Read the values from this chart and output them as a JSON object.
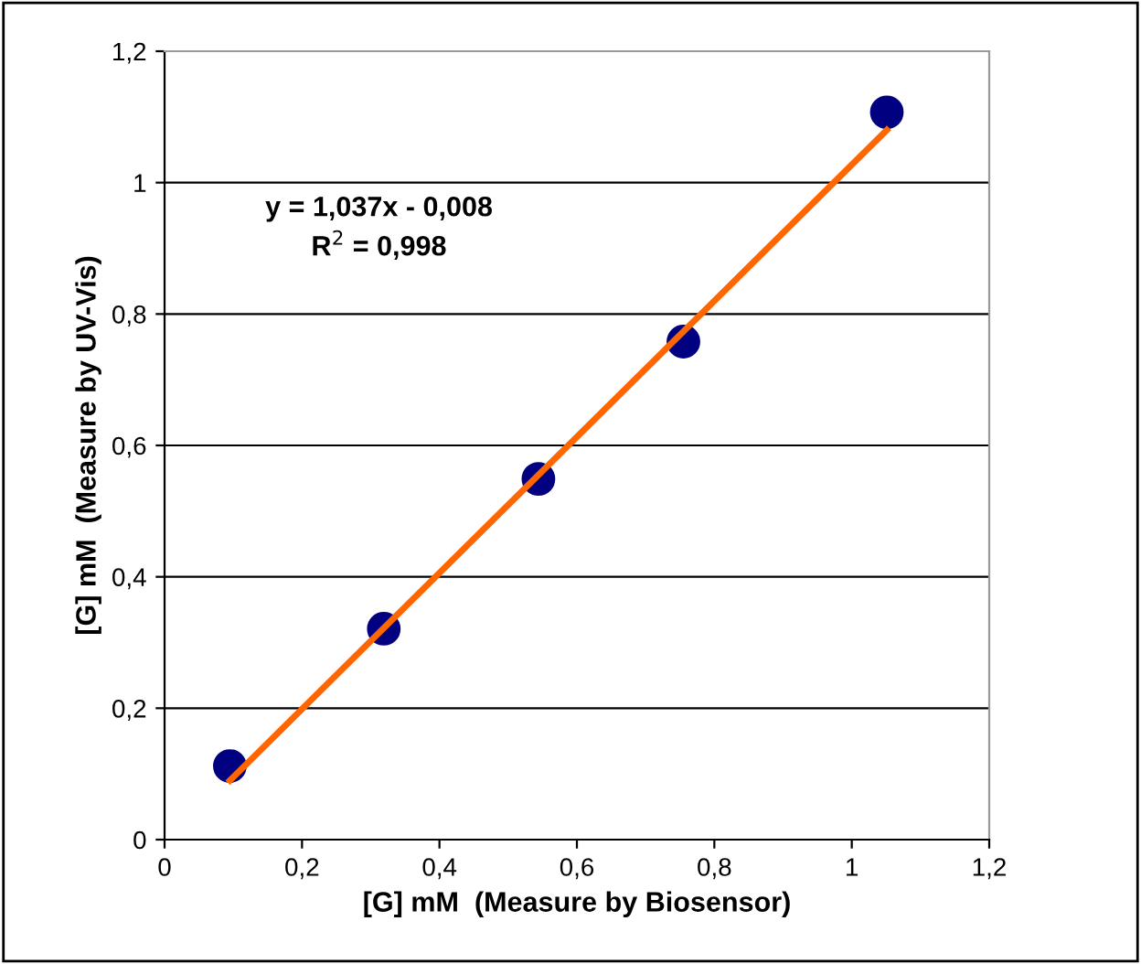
{
  "chart_data": {
    "type": "scatter",
    "xlabel": "[G] mM  (Measure by Biosensor)",
    "ylabel": "[G] mM  (Measure by UV-Vis)",
    "series": [
      {
        "color": "#000080",
        "marker": "circle",
        "x": [
          0.095,
          0.319,
          0.544,
          0.755,
          1.051
        ],
        "values": [
          0.112,
          0.321,
          0.549,
          0.758,
          1.107
        ]
      },
      {
        "type": "line",
        "color": "#ff6600",
        "marker": "none",
        "x": [
          0.095,
          1.051
        ],
        "values": [
          0.09,
          1.08
        ]
      }
    ],
    "annotations": [
      "y = 1,037x - 0,008\nR$^{2}$ = 0,998"
    ],
    "xlim": [
      0,
      1.2
    ],
    "ylim": [
      0,
      1.2
    ],
    "xticks": [
      0,
      {
        "value": 0.2,
        "label": "0,2"
      },
      {
        "value": 0.4,
        "label": "0,4"
      },
      {
        "value": 0.6,
        "label": "0,6"
      },
      {
        "value": 0.8,
        "label": "0,8"
      },
      1,
      {
        "value": 1.2,
        "label": "1,2"
      }
    ],
    "yticks": [
      0,
      {
        "value": 0.2,
        "label": "0,2"
      },
      {
        "value": 0.4,
        "label": "0,4"
      },
      {
        "value": 0.6,
        "label": "0,6"
      },
      {
        "value": 0.8,
        "label": "0,8"
      },
      1,
      {
        "value": 1.2,
        "label": "1,2"
      }
    ],
    "grid": "y",
    "legend": false
  }
}
